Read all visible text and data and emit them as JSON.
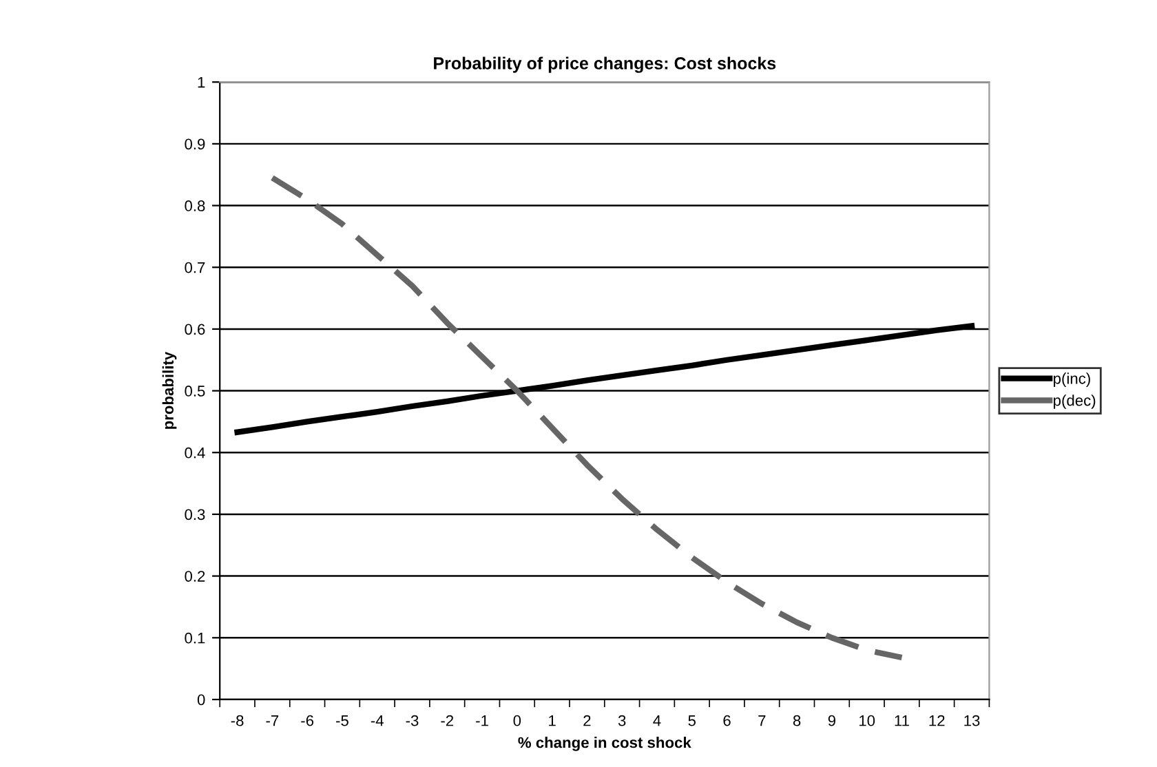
{
  "chart_data": {
    "type": "line",
    "title": "Probability of price changes: Cost shocks",
    "xlabel": "% change in cost shock",
    "ylabel": "probability",
    "categories": [
      "-8",
      "-7",
      "-6",
      "-5",
      "-4",
      "-3",
      "-2",
      "-1",
      "0",
      "1",
      "2",
      "3",
      "4",
      "5",
      "6",
      "7",
      "8",
      "9",
      "10",
      "11",
      "12",
      "13"
    ],
    "series": [
      {
        "name": "p(inc)",
        "color": "#000000",
        "line_style": "solid",
        "values": [
          0.433,
          0.441,
          0.45,
          0.458,
          0.466,
          0.475,
          0.483,
          0.492,
          0.5,
          0.508,
          0.517,
          0.525,
          0.533,
          0.541,
          0.55,
          0.558,
          0.566,
          0.574,
          0.582,
          0.59,
          0.598,
          0.605
        ]
      },
      {
        "name": "p(dec)",
        "color": "#666666",
        "line_style": "dashed",
        "values": [
          null,
          0.845,
          0.81,
          0.77,
          0.72,
          0.67,
          0.61,
          0.555,
          0.5,
          0.44,
          0.38,
          0.325,
          0.275,
          0.23,
          0.19,
          0.155,
          0.125,
          0.1,
          0.08,
          0.068,
          null,
          null
        ]
      }
    ],
    "ylim": [
      0,
      1
    ],
    "yticks": [
      0,
      0.1,
      0.2,
      0.3,
      0.4,
      0.5,
      0.6,
      0.7,
      0.8,
      0.9,
      1
    ],
    "grid": "y",
    "legend": "right",
    "marker": "none"
  }
}
